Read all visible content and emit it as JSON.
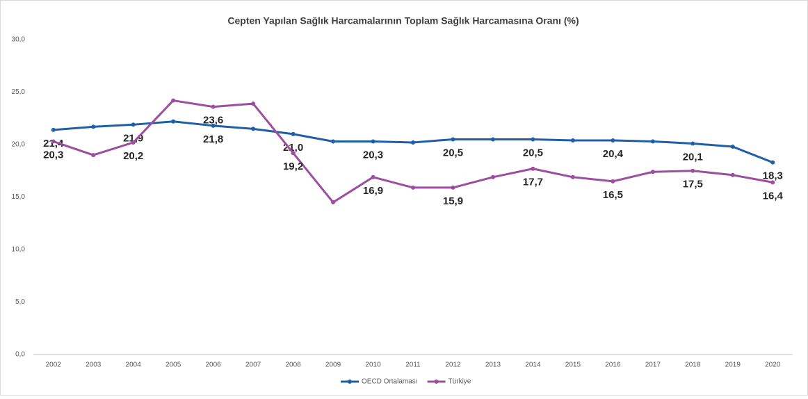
{
  "chart_data": {
    "type": "line",
    "title": "Cepten Yapılan Sağlık Harcamalarının Toplam Sağlık Harcamasına Oranı (%)",
    "categories": [
      "2002",
      "2003",
      "2004",
      "2005",
      "2006",
      "2007",
      "2008",
      "2009",
      "2010",
      "2011",
      "2012",
      "2013",
      "2014",
      "2015",
      "2016",
      "2017",
      "2018",
      "2019",
      "2020"
    ],
    "series": [
      {
        "name": "OECD Ortalaması",
        "color": "#1f5fa8",
        "values": [
          21.4,
          21.7,
          21.9,
          22.2,
          21.8,
          21.5,
          21.0,
          20.3,
          20.3,
          20.2,
          20.5,
          20.5,
          20.5,
          20.4,
          20.4,
          20.3,
          20.1,
          19.8,
          18.3
        ],
        "value_labels": [
          "21,4",
          null,
          "21,9",
          null,
          "21,8",
          null,
          "21,0",
          null,
          "20,3",
          null,
          "20,5",
          null,
          "20,5",
          null,
          "20,4",
          null,
          "20,1",
          null,
          "18,3"
        ]
      },
      {
        "name": "Türkiye",
        "color": "#9b4f9e",
        "values": [
          20.3,
          19.0,
          20.2,
          24.2,
          23.6,
          23.9,
          19.2,
          14.5,
          16.9,
          15.9,
          15.9,
          16.9,
          17.7,
          16.9,
          16.5,
          17.4,
          17.5,
          17.1,
          16.4
        ],
        "value_labels": [
          "20,3",
          null,
          "20,2",
          null,
          "23,6",
          null,
          "19,2",
          null,
          "16,9",
          null,
          "15,9",
          null,
          "17,7",
          null,
          "16,5",
          null,
          "17,5",
          null,
          "16,4"
        ]
      }
    ],
    "ylim": [
      0,
      30
    ],
    "yticks": [
      {
        "value": 0,
        "label": "0,0"
      },
      {
        "value": 5,
        "label": "5,0"
      },
      {
        "value": 10,
        "label": "10,0"
      },
      {
        "value": 15,
        "label": "15,0"
      },
      {
        "value": 20,
        "label": "20,0"
      },
      {
        "value": 25,
        "label": "25,0"
      },
      {
        "value": 30,
        "label": "30,0"
      }
    ],
    "grid": false,
    "legend": "bottom"
  }
}
